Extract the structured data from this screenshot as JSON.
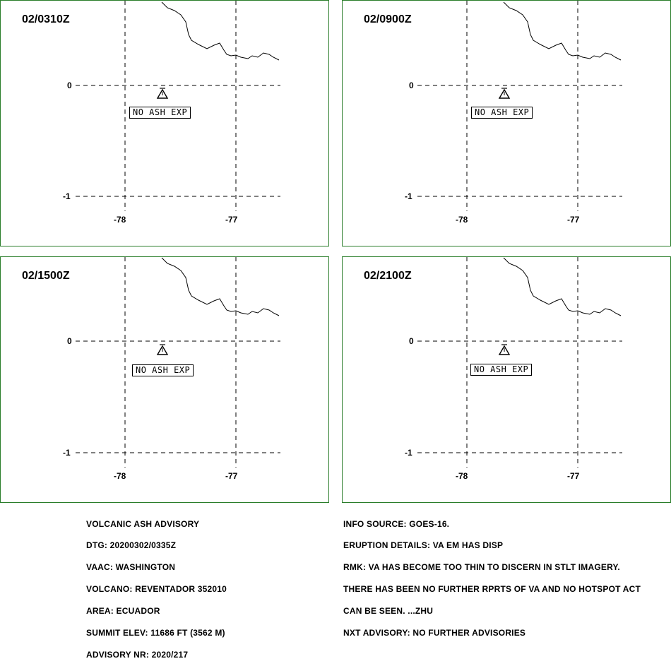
{
  "panels": [
    {
      "time": "02/0310Z",
      "ash_label": "NO ASH EXP"
    },
    {
      "time": "02/0900Z",
      "ash_label": "NO ASH EXP"
    },
    {
      "time": "02/1500Z",
      "ash_label": "NO ASH EXP"
    },
    {
      "time": "02/2100Z",
      "ash_label": "NO ASH EXP"
    }
  ],
  "grid": {
    "lat_labels": [
      "0",
      "-1"
    ],
    "lon_labels": [
      "-78",
      "-77"
    ]
  },
  "advisory_left": [
    "VOLCANIC ASH ADVISORY",
    "DTG: 20200302/0335Z",
    "VAAC: WASHINGTON",
    "VOLCANO: REVENTADOR 352010",
    "AREA: ECUADOR",
    "SUMMIT ELEV: 11686 FT (3562 M)",
    "ADVISORY NR: 2020/217"
  ],
  "advisory_right": [
    "INFO SOURCE: GOES-16.",
    "ERUPTION DETAILS: VA EM HAS DISP",
    "RMK: VA HAS BECOME TOO THIN TO DISCERN IN STLT IMAGERY.",
    "THERE HAS BEEN NO FURTHER RPRTS OF VA AND NO HOTSPOT ACT",
    "CAN BE SEEN. ...ZHU",
    "NXT ADVISORY: NO FURTHER ADVISORIES"
  ],
  "colors": {
    "panel_border": "#2a7d2a"
  },
  "icons": {
    "volcano": "volcano-triangle-icon"
  }
}
